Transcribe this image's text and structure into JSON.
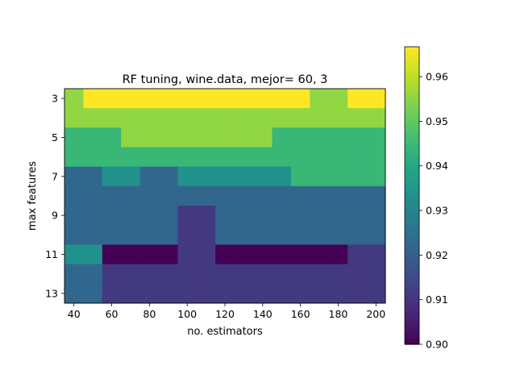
{
  "chart_data": {
    "type": "heatmap",
    "title": "RF tuning, wine.data, mejor= 60, 3",
    "xlabel": "no. estimators",
    "ylabel": "max features",
    "x": [
      40,
      50,
      60,
      70,
      80,
      90,
      100,
      110,
      120,
      130,
      140,
      150,
      160,
      170,
      180,
      190,
      200
    ],
    "x_ticks": [
      "40",
      "60",
      "80",
      "100",
      "120",
      "140",
      "160",
      "180",
      "200"
    ],
    "y": [
      3,
      4,
      5,
      6,
      7,
      8,
      9,
      10,
      11,
      12,
      13
    ],
    "y_ticks": [
      "3",
      "5",
      "7",
      "9",
      "11",
      "13"
    ],
    "colorbar": {
      "min": 0.9,
      "max": 0.9667,
      "ticks": [
        "0.90",
        "0.91",
        "0.92",
        "0.93",
        "0.94",
        "0.95",
        "0.96"
      ],
      "tick_values": [
        0.9,
        0.91,
        0.92,
        0.93,
        0.94,
        0.95,
        0.96
      ],
      "colormap": "viridis"
    },
    "values": [
      [
        0.9556,
        0.9667,
        0.9667,
        0.9667,
        0.9667,
        0.9667,
        0.9667,
        0.9667,
        0.9667,
        0.9667,
        0.9667,
        0.9667,
        0.9667,
        0.9556,
        0.9556,
        0.9667,
        0.9667
      ],
      [
        0.9556,
        0.9556,
        0.9556,
        0.9556,
        0.9556,
        0.9556,
        0.9556,
        0.9556,
        0.9556,
        0.9556,
        0.9556,
        0.9556,
        0.9556,
        0.9556,
        0.9556,
        0.9556,
        0.9556
      ],
      [
        0.9444,
        0.9444,
        0.9444,
        0.9556,
        0.9556,
        0.9556,
        0.9556,
        0.9556,
        0.9556,
        0.9556,
        0.9556,
        0.9444,
        0.9444,
        0.9444,
        0.9444,
        0.9444,
        0.9444
      ],
      [
        0.9444,
        0.9444,
        0.9444,
        0.9444,
        0.9444,
        0.9444,
        0.9444,
        0.9444,
        0.9444,
        0.9444,
        0.9444,
        0.9444,
        0.9444,
        0.9444,
        0.9444,
        0.9444,
        0.9444
      ],
      [
        0.9222,
        0.9222,
        0.9333,
        0.9333,
        0.9222,
        0.9222,
        0.9333,
        0.9333,
        0.9333,
        0.9333,
        0.9333,
        0.9333,
        0.9444,
        0.9444,
        0.9444,
        0.9444,
        0.9444
      ],
      [
        0.9222,
        0.9222,
        0.9222,
        0.9222,
        0.9222,
        0.9222,
        0.9222,
        0.9222,
        0.9222,
        0.9222,
        0.9222,
        0.9222,
        0.9222,
        0.9222,
        0.9222,
        0.9222,
        0.9222
      ],
      [
        0.9222,
        0.9222,
        0.9222,
        0.9222,
        0.9222,
        0.9222,
        0.9111,
        0.9111,
        0.9222,
        0.9222,
        0.9222,
        0.9222,
        0.9222,
        0.9222,
        0.9222,
        0.9222,
        0.9222
      ],
      [
        0.9222,
        0.9222,
        0.9222,
        0.9222,
        0.9222,
        0.9222,
        0.9111,
        0.9111,
        0.9222,
        0.9222,
        0.9222,
        0.9222,
        0.9222,
        0.9222,
        0.9222,
        0.9222,
        0.9222
      ],
      [
        0.9333,
        0.9333,
        0.9,
        0.9,
        0.9,
        0.9,
        0.9111,
        0.9111,
        0.9,
        0.9,
        0.9,
        0.9,
        0.9,
        0.9,
        0.9,
        0.9111,
        0.9111
      ],
      [
        0.9222,
        0.9222,
        0.9111,
        0.9111,
        0.9111,
        0.9111,
        0.9111,
        0.9111,
        0.9111,
        0.9111,
        0.9111,
        0.9111,
        0.9111,
        0.9111,
        0.9111,
        0.9111,
        0.9111
      ],
      [
        0.9222,
        0.9222,
        0.9111,
        0.9111,
        0.9111,
        0.9111,
        0.9111,
        0.9111,
        0.9111,
        0.9111,
        0.9111,
        0.9111,
        0.9111,
        0.9111,
        0.9111,
        0.9111,
        0.9111
      ]
    ]
  }
}
